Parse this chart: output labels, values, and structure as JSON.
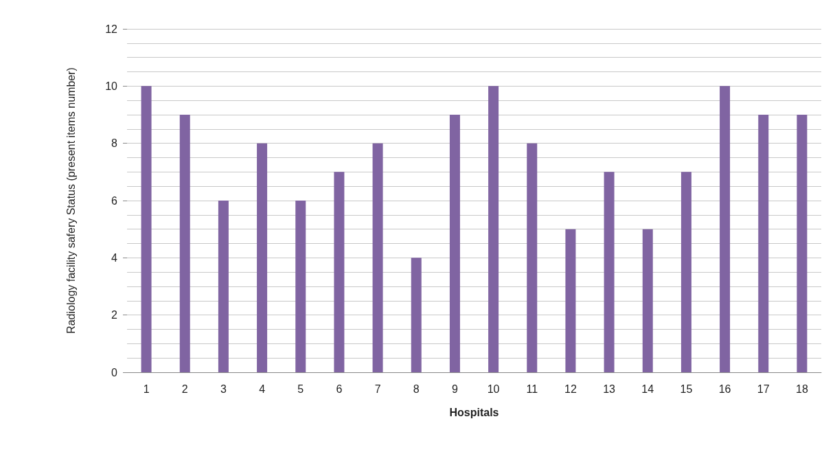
{
  "chart_data": {
    "type": "bar",
    "xlabel": "Hospitals",
    "ylabel": "Radiology facility safery Status (present items number)",
    "categories": [
      "1",
      "2",
      "3",
      "4",
      "5",
      "6",
      "7",
      "8",
      "9",
      "10",
      "11",
      "12",
      "13",
      "14",
      "15",
      "16",
      "17",
      "18"
    ],
    "values": [
      10,
      9,
      6,
      8,
      6,
      7,
      8,
      4,
      9,
      10,
      8,
      5,
      7,
      5,
      7,
      10,
      9,
      9
    ],
    "color": "#8064a2",
    "ylim": [
      0,
      12
    ],
    "yticks": [
      0,
      {
        "value": 0.5,
        "label": null
      },
      {
        "value": 1,
        "label": null
      },
      {
        "value": 1.5,
        "label": null
      },
      2,
      {
        "value": 2.5,
        "label": null
      },
      {
        "value": 3,
        "label": null
      },
      {
        "value": 3.5,
        "label": null
      },
      4,
      {
        "value": 4.5,
        "label": null
      },
      {
        "value": 5,
        "label": null
      },
      {
        "value": 5.5,
        "label": null
      },
      6,
      {
        "value": 6.5,
        "label": null
      },
      {
        "value": 7,
        "label": null
      },
      {
        "value": 7.5,
        "label": null
      },
      8,
      {
        "value": 8.5,
        "label": null
      },
      {
        "value": 9,
        "label": null
      },
      {
        "value": 9.5,
        "label": null
      },
      10,
      {
        "value": 10.5,
        "label": null
      },
      {
        "value": 11,
        "label": null
      },
      {
        "value": 11.5,
        "label": null
      },
      12
    ],
    "grid": "y"
  }
}
